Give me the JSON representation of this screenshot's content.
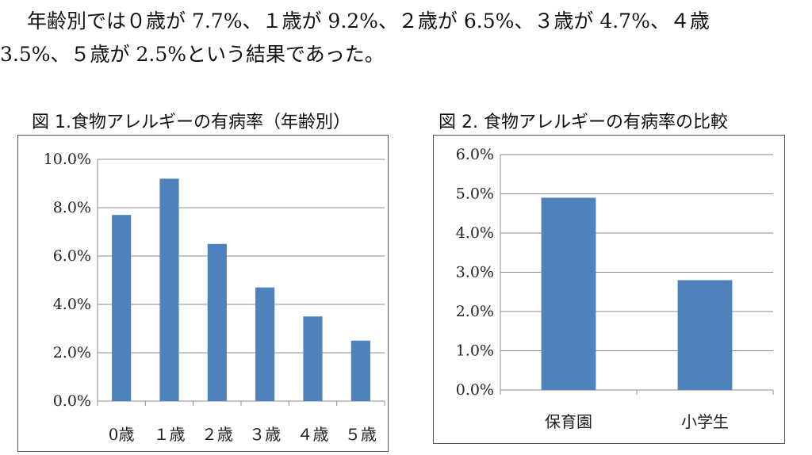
{
  "paragraph": {
    "line1": "年齢別では０歳が 7.7%、１歳が 9.2%、２歳が 6.5%、３歳が 4.7%、４歳",
    "line2": "3.5%、５歳が 2.5%という結果であった。"
  },
  "chart_data": [
    {
      "type": "bar",
      "title": "図 1.食物アレルギーの有病率（年齢別）",
      "categories": [
        "0歳",
        "１歳",
        "２歳",
        "３歳",
        "４歳",
        "５歳"
      ],
      "values": [
        7.7,
        9.2,
        6.5,
        4.7,
        3.5,
        2.5
      ],
      "yticks": [
        "0.0%",
        "2.0%",
        "4.0%",
        "6.0%",
        "8.0%",
        "10.0%"
      ],
      "ylim": [
        0,
        10
      ],
      "grid": true,
      "bar_color": "#4f81bd"
    },
    {
      "type": "bar",
      "title": "図 2. 食物アレルギーの有病率の比較",
      "categories": [
        "保育園",
        "小学生"
      ],
      "values": [
        4.9,
        2.8
      ],
      "yticks": [
        "0.0%",
        "1.0%",
        "2.0%",
        "3.0%",
        "4.0%",
        "5.0%",
        "6.0%"
      ],
      "ylim": [
        0,
        6
      ],
      "grid": true,
      "bar_color": "#4f81bd"
    }
  ]
}
